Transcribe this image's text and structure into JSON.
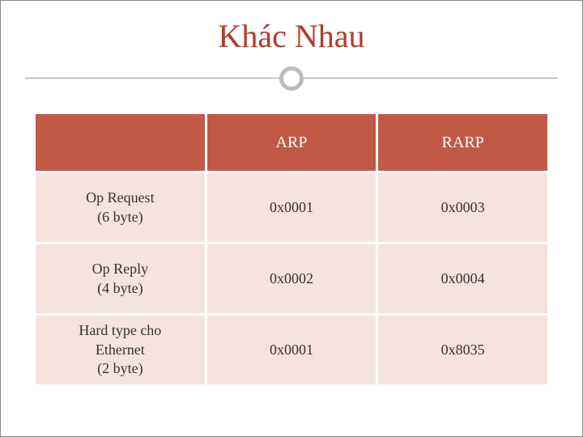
{
  "title": "Khác Nhau",
  "table": {
    "type": "table",
    "header_bg": "#c05a47",
    "header_color": "#ffffff",
    "cell_bg": "#f5e3df",
    "cell_color": "#333333",
    "title_color": "#b23a2a",
    "divider_circle_border": "#bbbbbb",
    "columns": [
      "",
      "ARP",
      "RARP"
    ],
    "rows": [
      {
        "label_line1": "Op Request",
        "label_line2": "(6 byte)",
        "arp": "0x0001",
        "rarp": "0x0003"
      },
      {
        "label_line1": "Op Reply",
        "label_line2": "(4 byte)",
        "arp": "0x0002",
        "rarp": "0x0004"
      },
      {
        "label_line1": "Hard type cho",
        "label_line2": "Ethernet",
        "label_line3": "(2 byte)",
        "arp": "0x0001",
        "rarp": "0x8035"
      }
    ]
  }
}
